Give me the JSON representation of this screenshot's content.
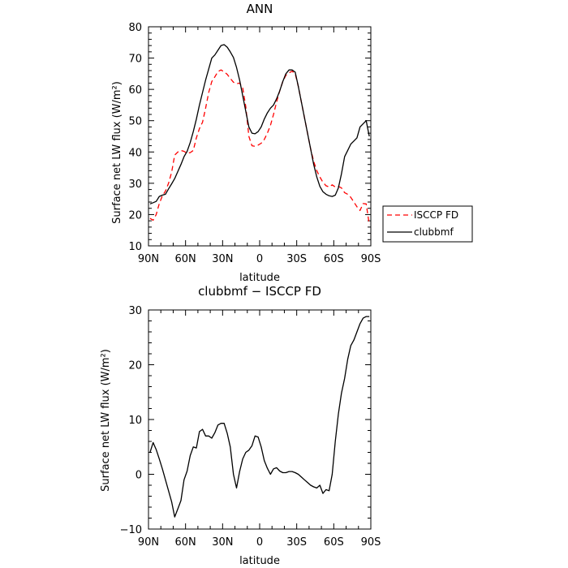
{
  "chart_data": [
    {
      "type": "line",
      "title": "ANN",
      "xlabel": "latitude",
      "ylabel": "Surface net LW flux (W/m²)",
      "xlim": [
        90,
        -90
      ],
      "ylim": [
        10,
        80
      ],
      "xticks": [
        90,
        60,
        30,
        0,
        -30,
        -60,
        -90
      ],
      "xtick_labels": [
        "90N",
        "60N",
        "30N",
        "0",
        "30S",
        "60S",
        "90S"
      ],
      "yticks": [
        10,
        20,
        30,
        40,
        50,
        60,
        70,
        80
      ],
      "ytick_labels": [
        "10",
        "20",
        "30",
        "40",
        "50",
        "60",
        "70",
        "80"
      ],
      "grid": false,
      "legend": "right",
      "series": [
        {
          "name": "ISCCP FD",
          "color": "#ff0000",
          "dash": "dashed",
          "x": [
            88.75,
            86.25,
            83.75,
            81.25,
            78.75,
            76.25,
            73.75,
            71.25,
            68.75,
            66.25,
            63.75,
            61.25,
            58.75,
            56.25,
            53.75,
            51.25,
            48.75,
            46.25,
            43.75,
            41.25,
            38.75,
            36.25,
            33.75,
            31.25,
            28.75,
            26.25,
            23.75,
            21.25,
            18.75,
            16.25,
            13.75,
            11.25,
            8.75,
            6.25,
            3.75,
            1.25,
            -1.25,
            -3.75,
            -6.25,
            -8.75,
            -11.25,
            -13.75,
            -16.25,
            -18.75,
            -21.25,
            -23.75,
            -26.25,
            -28.75,
            -31.25,
            -33.75,
            -36.25,
            -38.75,
            -41.25,
            -43.75,
            -46.25,
            -48.75,
            -51.25,
            -53.75,
            -56.25,
            -58.75,
            -61.25,
            -63.75,
            -66.25,
            -68.75,
            -71.25,
            -73.75,
            -76.25,
            -78.75,
            -81.25,
            -83.75,
            -86.25,
            -88.75
          ],
          "y": [
            18.8,
            18.2,
            20.0,
            23.5,
            26.0,
            27.5,
            30.0,
            33.5,
            39.0,
            40.0,
            40.5,
            40.2,
            39.6,
            39.8,
            40.5,
            44.5,
            47.5,
            49.5,
            54.0,
            59.0,
            62.5,
            64.0,
            65.7,
            66.2,
            65.6,
            64.8,
            63.5,
            62.3,
            61.8,
            62.0,
            60.5,
            54.5,
            45.0,
            42.0,
            41.8,
            42.2,
            42.8,
            44.0,
            46.0,
            48.5,
            52.0,
            56.0,
            59.5,
            62.5,
            64.5,
            65.3,
            65.8,
            65.0,
            61.0,
            56.0,
            51.0,
            46.0,
            41.0,
            37.0,
            34.0,
            32.0,
            30.3,
            29.2,
            28.8,
            29.5,
            28.8,
            29.0,
            28.5,
            27.0,
            26.5,
            25.5,
            24.0,
            22.5,
            21.3,
            23.5,
            23.4,
            16.8
          ]
        },
        {
          "name": "clubbmf",
          "color": "#000000",
          "dash": "solid",
          "x": [
            88.75,
            86.25,
            83.75,
            81.25,
            78.75,
            76.25,
            73.75,
            71.25,
            68.75,
            66.25,
            63.75,
            61.25,
            58.75,
            56.25,
            53.75,
            51.25,
            48.75,
            46.25,
            43.75,
            41.25,
            38.75,
            36.25,
            33.75,
            31.25,
            28.75,
            26.25,
            23.75,
            21.25,
            18.75,
            16.25,
            13.75,
            11.25,
            8.75,
            6.25,
            3.75,
            1.25,
            -1.25,
            -3.75,
            -6.25,
            -8.75,
            -11.25,
            -13.75,
            -16.25,
            -18.75,
            -21.25,
            -23.75,
            -26.25,
            -28.75,
            -31.25,
            -33.75,
            -36.25,
            -38.75,
            -41.25,
            -43.75,
            -46.25,
            -48.75,
            -51.25,
            -53.75,
            -56.25,
            -58.75,
            -61.25,
            -63.75,
            -66.25,
            -68.75,
            -71.25,
            -73.75,
            -76.25,
            -78.75,
            -81.25,
            -83.75,
            -86.25,
            -88.75
          ],
          "y": [
            23.4,
            23.8,
            24.2,
            25.8,
            26.2,
            26.5,
            28.2,
            29.8,
            31.5,
            33.8,
            36.0,
            38.5,
            40.2,
            43.0,
            46.5,
            50.5,
            55.0,
            59.0,
            63.0,
            66.5,
            70.0,
            71.0,
            72.5,
            74.0,
            74.3,
            73.5,
            72.0,
            70.2,
            67.0,
            63.0,
            58.0,
            53.0,
            48.0,
            46.0,
            45.8,
            46.5,
            48.0,
            50.5,
            52.5,
            54.0,
            55.0,
            57.0,
            59.5,
            62.5,
            65.0,
            66.2,
            66.2,
            65.5,
            61.0,
            56.0,
            51.0,
            46.0,
            41.0,
            36.0,
            32.0,
            29.0,
            27.3,
            26.5,
            26.0,
            25.8,
            26.2,
            28.5,
            33.0,
            38.5,
            40.5,
            42.5,
            43.5,
            44.5,
            48.0,
            49.0,
            50.0,
            45.0
          ]
        }
      ]
    },
    {
      "type": "line",
      "title": "clubbmf − ISCCP FD",
      "xlabel": "latitude",
      "ylabel": "Surface net LW flux (W/m²)",
      "xlim": [
        90,
        -90
      ],
      "ylim": [
        -10,
        30
      ],
      "xticks": [
        90,
        60,
        30,
        0,
        -30,
        -60,
        -90
      ],
      "xtick_labels": [
        "90N",
        "60N",
        "30N",
        "0",
        "30S",
        "60S",
        "90S"
      ],
      "yticks": [
        -10,
        0,
        10,
        20,
        30
      ],
      "ytick_labels": [
        "−10",
        "0",
        "10",
        "20",
        "30"
      ],
      "grid": false,
      "series": [
        {
          "color": "#000000",
          "dash": "solid",
          "x": [
            88.75,
            86.25,
            83.75,
            81.25,
            78.75,
            76.25,
            73.75,
            71.25,
            68.75,
            66.25,
            63.75,
            61.25,
            58.75,
            56.25,
            53.75,
            51.25,
            48.75,
            46.25,
            43.75,
            41.25,
            38.75,
            36.25,
            33.75,
            31.25,
            28.75,
            26.25,
            23.75,
            21.25,
            18.75,
            16.25,
            13.75,
            11.25,
            8.75,
            6.25,
            3.75,
            1.25,
            -1.25,
            -3.75,
            -6.25,
            -8.75,
            -11.25,
            -13.75,
            -16.25,
            -18.75,
            -21.25,
            -23.75,
            -26.25,
            -28.75,
            -31.25,
            -33.75,
            -36.25,
            -38.75,
            -41.25,
            -43.75,
            -46.25,
            -48.75,
            -51.25,
            -53.75,
            -56.25,
            -58.75,
            -61.25,
            -63.75,
            -66.25,
            -68.75,
            -71.25,
            -73.75,
            -76.25,
            -78.75,
            -81.25,
            -83.75,
            -86.25,
            -88.75
          ],
          "y": [
            4.0,
            5.8,
            4.5,
            2.8,
            1.0,
            -1.0,
            -3.0,
            -5.0,
            -7.8,
            -6.3,
            -4.8,
            -1.0,
            0.6,
            3.4,
            5.0,
            4.8,
            7.8,
            8.2,
            7.0,
            7.0,
            6.6,
            7.6,
            9.0,
            9.3,
            9.3,
            7.5,
            5.0,
            0.0,
            -2.5,
            0.5,
            2.8,
            4.0,
            4.4,
            5.2,
            7.0,
            6.8,
            5.0,
            2.5,
            1.1,
            0.0,
            1.0,
            1.2,
            0.6,
            0.3,
            0.3,
            0.5,
            0.5,
            0.3,
            0.0,
            -0.5,
            -1.0,
            -1.5,
            -2.0,
            -2.3,
            -2.5,
            -2.0,
            -3.5,
            -2.8,
            -3.0,
            0.0,
            6.0,
            11.0,
            14.8,
            17.5,
            21.0,
            23.5,
            24.5,
            26.0,
            27.5,
            28.5,
            28.8,
            28.8
          ]
        }
      ]
    }
  ]
}
